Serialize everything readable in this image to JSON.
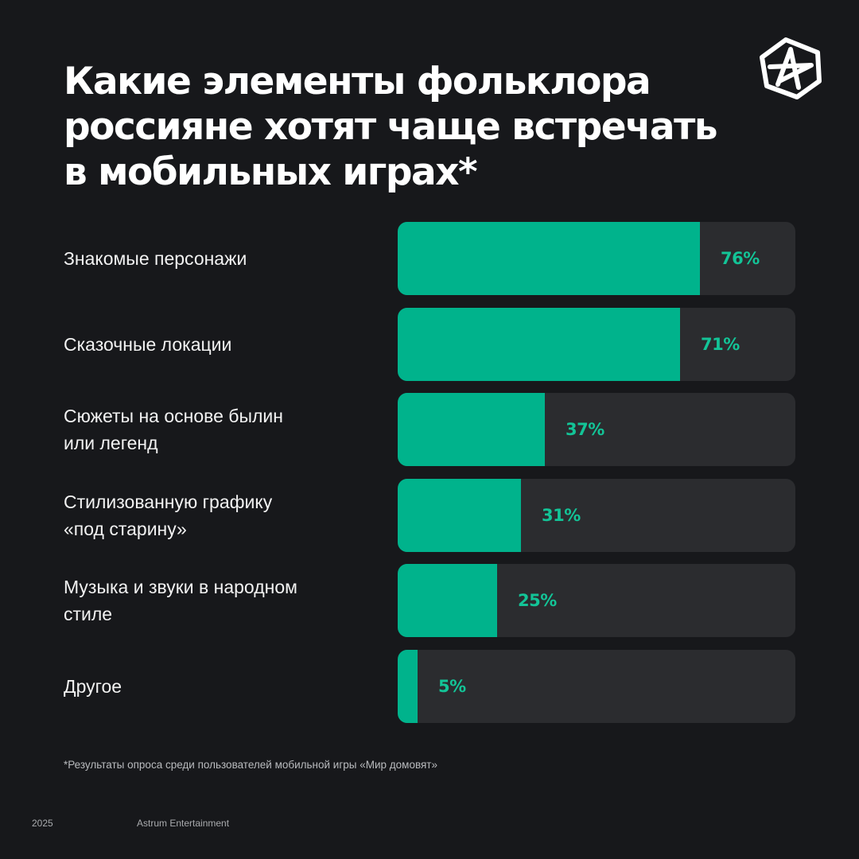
{
  "header": {
    "title": "Какие элементы фольклора россияне хотят чаще встречать в мобильных играх*"
  },
  "colors": {
    "background": "#17181b",
    "bar_fill": "#00b38c",
    "bar_track": "#2b2c2f",
    "value_text": "#13c497"
  },
  "logo": {
    "icon": "star-a-logo-icon"
  },
  "chart_data": {
    "type": "bar",
    "orientation": "horizontal",
    "categories": [
      "Знакомые персонажи",
      "Сказочные локации",
      "Сюжеты на основе былин\nили легенд",
      "Стилизованную графику\n«под старину»",
      "Музыка и звуки в народном\nстиле",
      "Другое"
    ],
    "values": [
      76,
      71,
      37,
      31,
      25,
      5
    ],
    "value_labels": [
      "76%",
      "71%",
      "37%",
      "31%",
      "25%",
      "5%"
    ],
    "unit": "%",
    "xlim": [
      0,
      100
    ],
    "grid": false
  },
  "footnote": "*Результаты опроса среди пользователей мобильной игры «Мир домовят»",
  "footer": {
    "year": "2025",
    "company": "Astrum Entertainment"
  }
}
